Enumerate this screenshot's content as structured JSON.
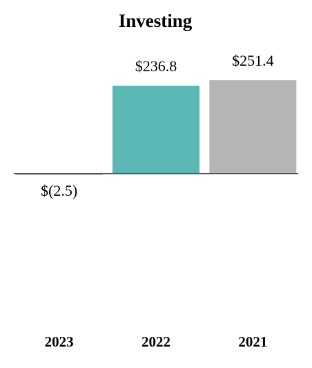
{
  "chart_data": {
    "type": "bar",
    "title": "Investing",
    "categories": [
      "2023",
      "2022",
      "2021"
    ],
    "values": [
      -2.5,
      236.8,
      251.4
    ],
    "value_labels": [
      "$(2.5)",
      "$236.8",
      "$251.4"
    ],
    "colors": [
      "#4a4a4a",
      "#5bb8b4",
      "#b5b5b5"
    ]
  }
}
